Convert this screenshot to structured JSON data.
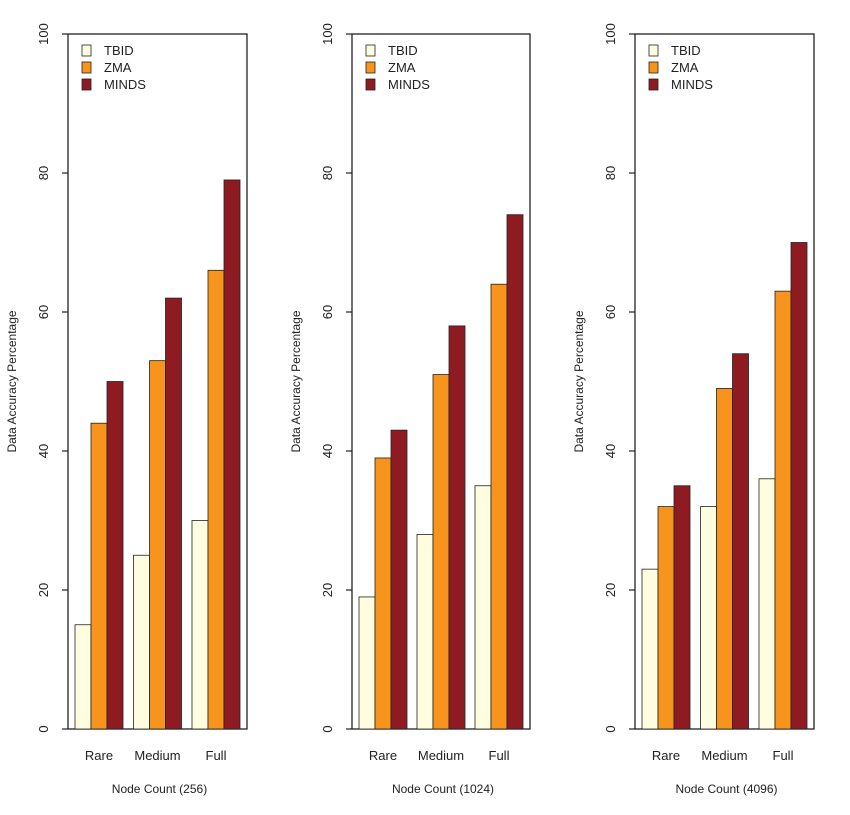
{
  "chart_data": [
    {
      "type": "bar",
      "categories": [
        "Rare",
        "Medium",
        "Full"
      ],
      "series": [
        {
          "name": "TBID",
          "values": [
            15,
            25,
            30
          ]
        },
        {
          "name": "ZMA",
          "values": [
            44,
            53,
            66
          ]
        },
        {
          "name": "MINDS",
          "values": [
            50,
            62,
            79
          ]
        }
      ],
      "xlabel": "Node Count (256)",
      "ylabel": "Data Accuracy Percentage",
      "ylim": [
        0,
        100
      ],
      "yticks": [
        0,
        20,
        40,
        60,
        80,
        100
      ],
      "legend": "top-left",
      "grid": false
    },
    {
      "type": "bar",
      "categories": [
        "Rare",
        "Medium",
        "Full"
      ],
      "series": [
        {
          "name": "TBID",
          "values": [
            19,
            28,
            35
          ]
        },
        {
          "name": "ZMA",
          "values": [
            39,
            51,
            64
          ]
        },
        {
          "name": "MINDS",
          "values": [
            43,
            58,
            74
          ]
        }
      ],
      "xlabel": "Node Count (1024)",
      "ylabel": "Data Accuracy Percentage",
      "ylim": [
        0,
        100
      ],
      "yticks": [
        0,
        20,
        40,
        60,
        80,
        100
      ],
      "legend": "top-left",
      "grid": false
    },
    {
      "type": "bar",
      "categories": [
        "Rare",
        "Medium",
        "Full"
      ],
      "series": [
        {
          "name": "TBID",
          "values": [
            23,
            32,
            36
          ]
        },
        {
          "name": "ZMA",
          "values": [
            32,
            49,
            63
          ]
        },
        {
          "name": "MINDS",
          "values": [
            35,
            54,
            70
          ]
        }
      ],
      "xlabel": "Node Count (4096)",
      "ylabel": "Data Accuracy Percentage",
      "ylim": [
        0,
        100
      ],
      "yticks": [
        0,
        20,
        40,
        60,
        80,
        100
      ],
      "legend": "top-left",
      "grid": false
    }
  ],
  "series_colors": {
    "TBID": "#fffde0",
    "ZMA": "#f7941d",
    "MINDS": "#8e1b22"
  }
}
